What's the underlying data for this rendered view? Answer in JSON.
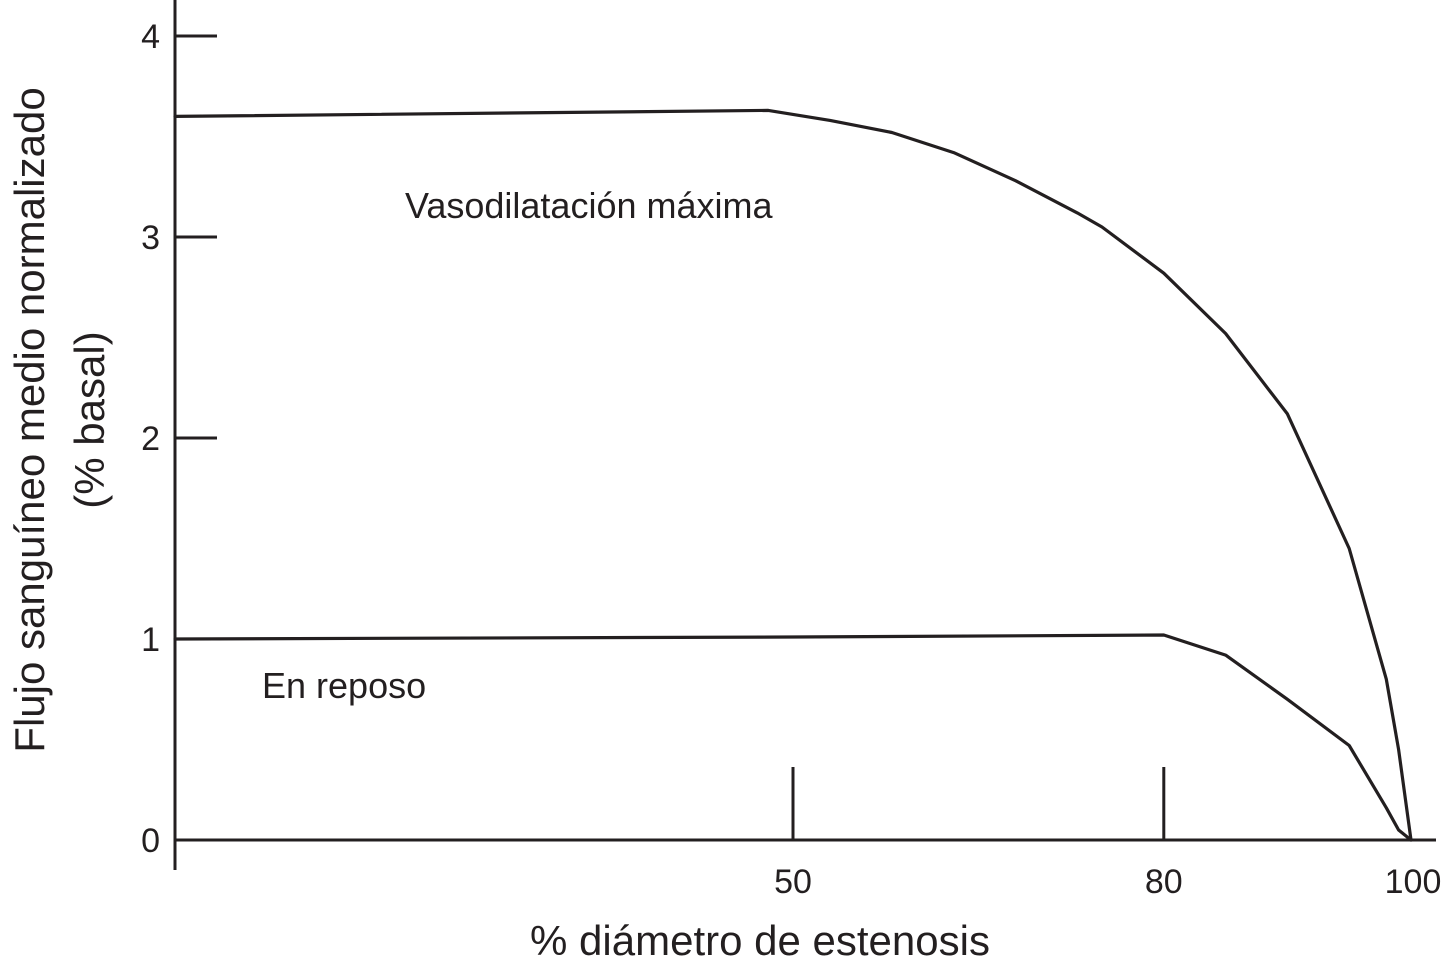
{
  "chart_data": {
    "type": "line",
    "title": "",
    "xlabel": "% diámetro de estenosis",
    "ylabel_line1": "Flujo sanguíneo medio normalizado",
    "ylabel_line2": "(% basal)",
    "xlim": [
      0,
      100
    ],
    "ylim": [
      0,
      4
    ],
    "x_ticks": [
      50,
      80,
      100
    ],
    "x_tick_labels": [
      "50",
      "80",
      "100"
    ],
    "y_ticks": [
      0,
      1,
      2,
      3,
      4
    ],
    "y_tick_labels": [
      "0",
      "1",
      "2",
      "3",
      "4"
    ],
    "grid": false,
    "legend": "none",
    "line_color": "#231f20",
    "series": [
      {
        "name": "Vasodilatación máxima",
        "x": [
          0,
          48,
          53,
          58,
          63,
          68,
          73,
          75,
          80,
          85,
          90,
          95,
          98,
          99,
          100
        ],
        "y": [
          3.6,
          3.63,
          3.58,
          3.52,
          3.42,
          3.28,
          3.12,
          3.05,
          2.82,
          2.52,
          2.12,
          1.45,
          0.8,
          0.45,
          0.0
        ]
      },
      {
        "name": "En reposo",
        "x": [
          0,
          50,
          80,
          85,
          90,
          95,
          98,
          99,
          100
        ],
        "y": [
          1.0,
          1.01,
          1.02,
          0.92,
          0.7,
          0.47,
          0.16,
          0.05,
          0.0
        ]
      }
    ]
  }
}
